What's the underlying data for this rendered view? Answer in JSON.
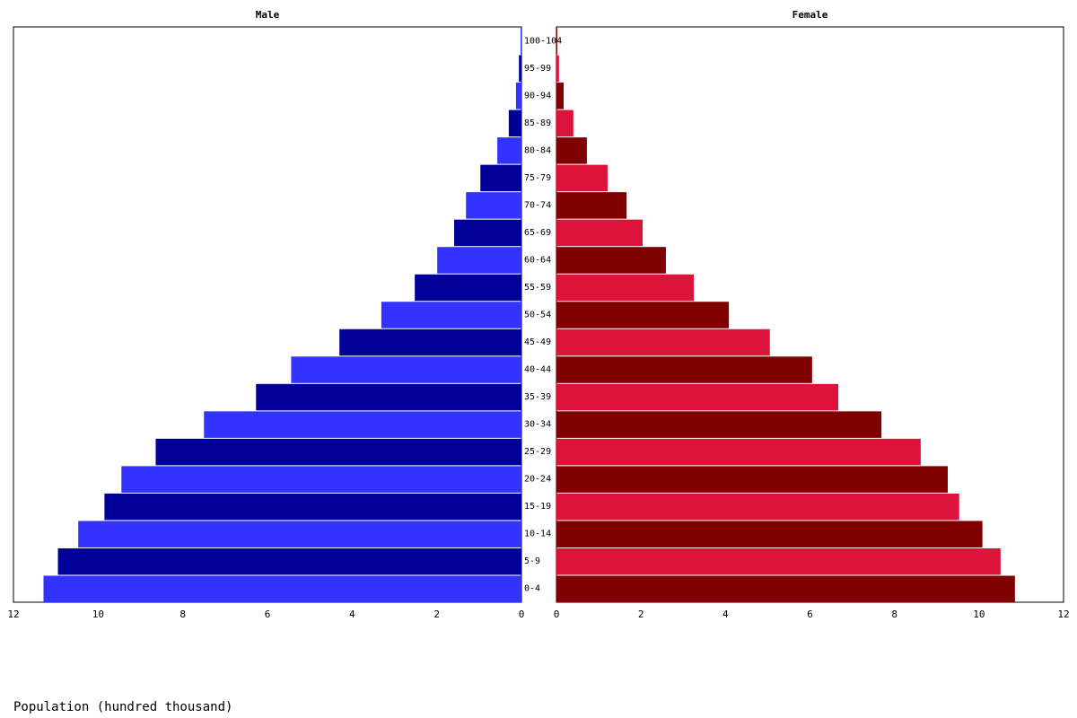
{
  "chart_data": {
    "type": "pyramid",
    "x_label": "Population (hundred thousand)",
    "categories": [
      "0-4",
      "5-9",
      "10-14",
      "15-19",
      "20-24",
      "25-29",
      "30-34",
      "35-39",
      "40-44",
      "45-49",
      "50-54",
      "55-59",
      "60-64",
      "65-69",
      "70-74",
      "75-79",
      "80-84",
      "85-89",
      "90-94",
      "95-99",
      "100-104"
    ],
    "series": [
      {
        "name": "Male",
        "colors": [
          "#3333ff",
          "#000099"
        ],
        "values": [
          11.29,
          10.95,
          10.47,
          9.85,
          9.45,
          8.64,
          7.5,
          6.27,
          5.44,
          4.3,
          3.31,
          2.52,
          1.99,
          1.59,
          1.31,
          0.97,
          0.57,
          0.3,
          0.13,
          0.06,
          0.02
        ]
      },
      {
        "name": "Female",
        "colors": [
          "#800000",
          "#dc143c"
        ],
        "values": [
          10.85,
          10.51,
          10.08,
          9.53,
          9.26,
          8.62,
          7.69,
          6.67,
          6.05,
          5.05,
          4.08,
          3.25,
          2.59,
          2.04,
          1.66,
          1.21,
          0.72,
          0.4,
          0.17,
          0.06,
          0.02
        ]
      }
    ],
    "xlim": [
      0,
      12
    ],
    "xticks": [
      0,
      2,
      4,
      6,
      8,
      10,
      12
    ]
  }
}
